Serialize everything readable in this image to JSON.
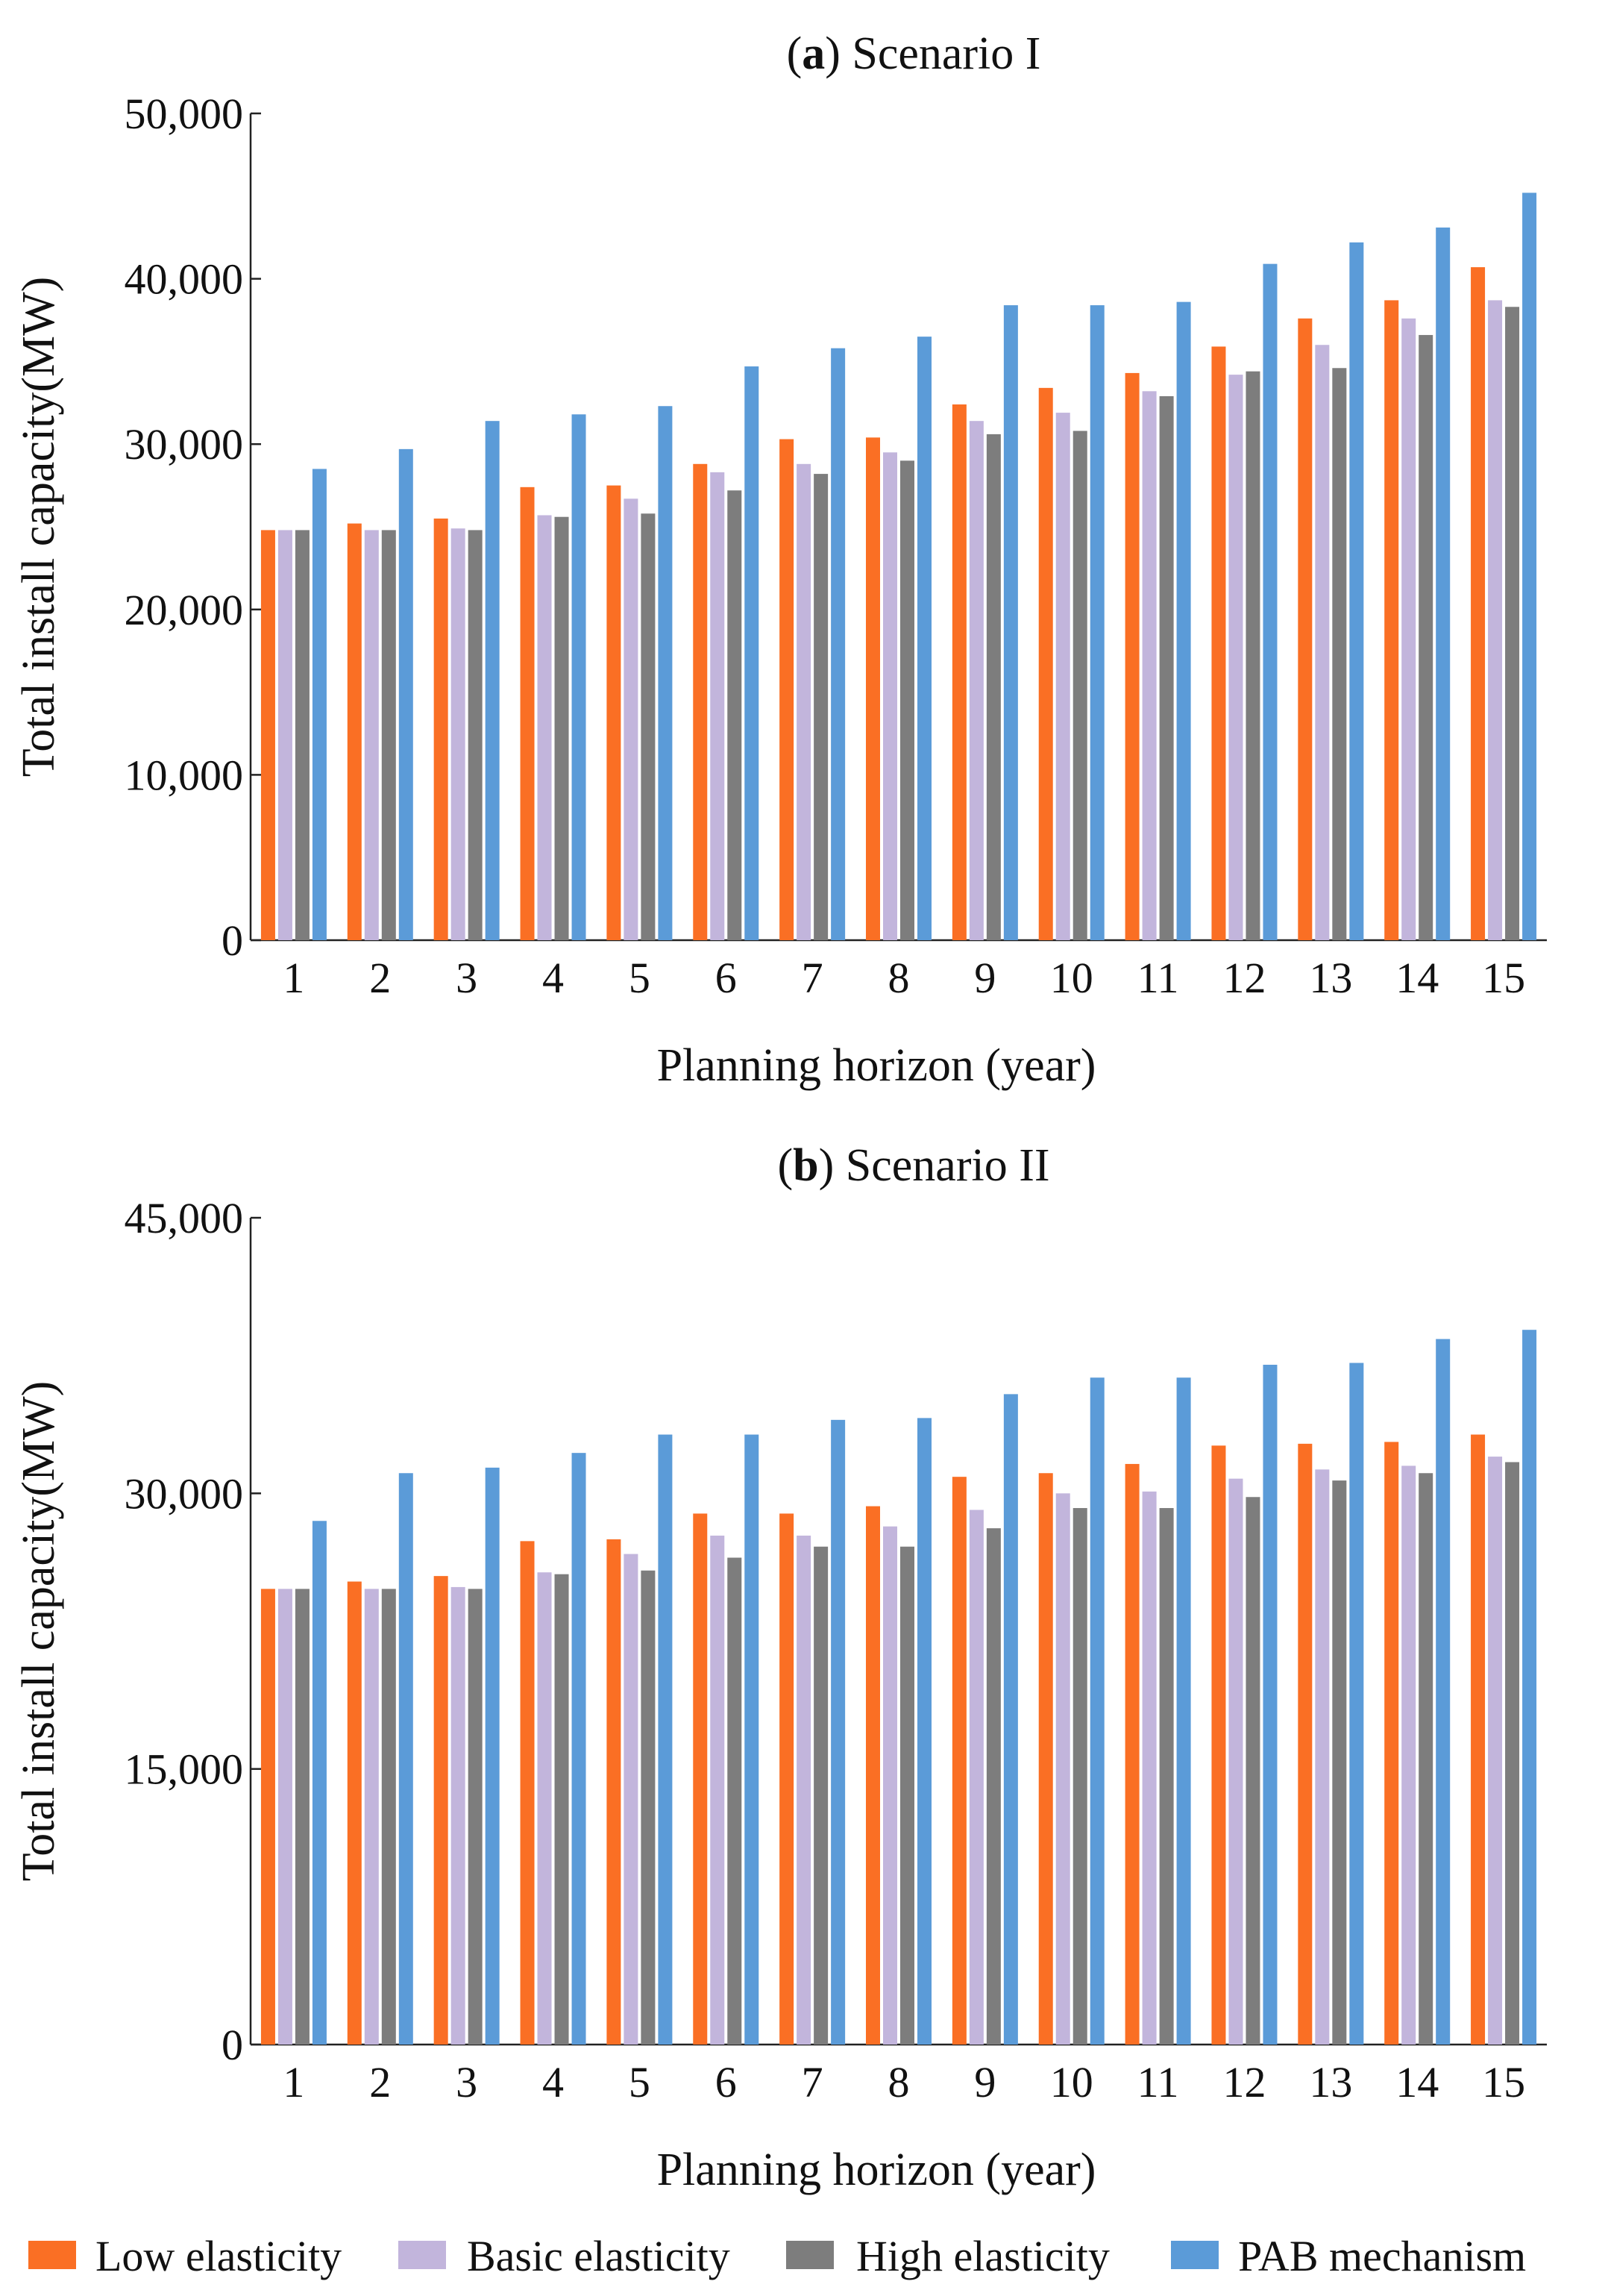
{
  "chart_data": [
    {
      "type": "bar",
      "title_prefix": "(",
      "title_letter": "a",
      "title_rest": ") Scenario I",
      "xlabel": "Planning horizon (year)",
      "ylabel": "Total install capacity(MW)",
      "ylim": [
        0,
        50000
      ],
      "yticks": [
        0,
        10000,
        20000,
        30000,
        40000,
        50000
      ],
      "ytick_labels": [
        "0",
        "10,000",
        "20,000",
        "30,000",
        "40,000",
        "50,000"
      ],
      "categories": [
        "1",
        "2",
        "3",
        "4",
        "5",
        "6",
        "7",
        "8",
        "9",
        "10",
        "11",
        "12",
        "13",
        "14",
        "15"
      ],
      "series": [
        {
          "name": "Low elasticity",
          "values": [
            24800,
            25200,
            25500,
            27400,
            27500,
            28800,
            30300,
            30400,
            32400,
            33400,
            34300,
            35900,
            37600,
            38700,
            40700
          ]
        },
        {
          "name": "Basic elasticity",
          "values": [
            24800,
            24800,
            24900,
            25700,
            26700,
            28300,
            28800,
            29500,
            31400,
            31900,
            33200,
            34200,
            36000,
            37600,
            38700
          ]
        },
        {
          "name": "High elasticity",
          "values": [
            24800,
            24800,
            24800,
            25600,
            25800,
            27200,
            28200,
            29000,
            30600,
            30800,
            32900,
            34400,
            34600,
            36600,
            38300
          ]
        },
        {
          "name": "PAB mechanism",
          "values": [
            28500,
            29700,
            31400,
            31800,
            32300,
            34700,
            35800,
            36500,
            38400,
            38400,
            38600,
            40900,
            42200,
            43100,
            45200
          ]
        }
      ]
    },
    {
      "type": "bar",
      "title_prefix": "(",
      "title_letter": "b",
      "title_rest": ") Scenario II",
      "xlabel": "Planning horizon (year)",
      "ylabel": "Total install capacity(MW)",
      "ylim": [
        0,
        45000
      ],
      "yticks": [
        0,
        15000,
        30000,
        45000
      ],
      "ytick_labels": [
        "0",
        "15,000",
        "30,000",
        "45,000"
      ],
      "categories": [
        "1",
        "2",
        "3",
        "4",
        "5",
        "6",
        "7",
        "8",
        "9",
        "10",
        "11",
        "12",
        "13",
        "14",
        "15"
      ],
      "series": [
        {
          "name": "Low elasticity",
          "values": [
            24800,
            25200,
            25500,
            27400,
            27500,
            28900,
            28900,
            29300,
            30900,
            31100,
            31600,
            32600,
            32700,
            32800,
            33200
          ]
        },
        {
          "name": "Basic elasticity",
          "values": [
            24800,
            24800,
            24900,
            25700,
            26700,
            27700,
            27700,
            28200,
            29100,
            30000,
            30100,
            30800,
            31300,
            31500,
            32000
          ]
        },
        {
          "name": "High elasticity",
          "values": [
            24800,
            24800,
            24800,
            25600,
            25800,
            26500,
            27100,
            27100,
            28100,
            29200,
            29200,
            29800,
            30700,
            31100,
            31700
          ]
        },
        {
          "name": "PAB mechanism",
          "values": [
            28500,
            31100,
            31400,
            32200,
            33200,
            33200,
            34000,
            34100,
            35400,
            36300,
            36300,
            37000,
            37100,
            38400,
            38900
          ]
        }
      ]
    }
  ],
  "legend": {
    "items": [
      {
        "name": "Low elasticity",
        "color": "#fa6f24"
      },
      {
        "name": "Basic elasticity",
        "color": "#c2b5dc"
      },
      {
        "name": "High elasticity",
        "color": "#7d7d7d"
      },
      {
        "name": "PAB mechanism",
        "color": "#5b9bd8"
      }
    ]
  }
}
